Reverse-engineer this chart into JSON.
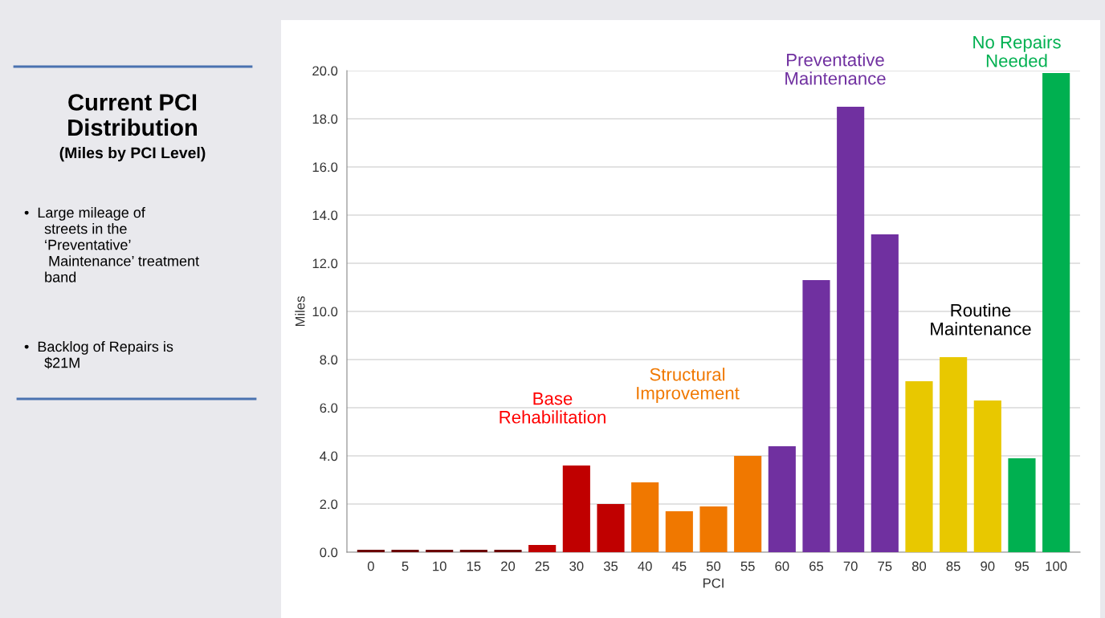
{
  "chart_data": {
    "type": "bar",
    "title": "Current PCI\nDistribution",
    "subtitle": "(Miles by PCI Level)",
    "xlabel": "PCI",
    "ylabel": "Miles",
    "categories": [
      "0",
      "5",
      "10",
      "15",
      "20",
      "25",
      "30",
      "35",
      "40",
      "45",
      "50",
      "55",
      "60",
      "65",
      "70",
      "75",
      "80",
      "85",
      "90",
      "95",
      "100"
    ],
    "values": [
      0.1,
      0.1,
      0.1,
      0.1,
      0.1,
      0.3,
      3.6,
      2.0,
      2.9,
      1.7,
      1.9,
      4.0,
      4.4,
      11.3,
      18.5,
      13.2,
      7.1,
      8.1,
      6.3,
      3.9,
      19.9
    ],
    "colors": [
      "#6b0000",
      "#6b0000",
      "#6b0000",
      "#6b0000",
      "#6b0000",
      "#c00000",
      "#c00000",
      "#c00000",
      "#f07800",
      "#f07800",
      "#f07800",
      "#f07800",
      "#7030a0",
      "#7030a0",
      "#7030a0",
      "#7030a0",
      "#e8c800",
      "#e8c800",
      "#e8c800",
      "#00b050",
      "#00b050"
    ],
    "ylim": [
      0,
      20
    ],
    "yticks": [
      {
        "value": 0,
        "label": "0.0"
      },
      {
        "value": 2,
        "label": "2.0"
      },
      {
        "value": 4,
        "label": "4.0"
      },
      {
        "value": 6,
        "label": "6.0"
      },
      {
        "value": 8,
        "label": "8.0"
      },
      {
        "value": 10,
        "label": "10.0"
      },
      {
        "value": 12,
        "label": "12.0"
      },
      {
        "value": 14,
        "label": "14.0"
      },
      {
        "value": 16,
        "label": "16.0"
      },
      {
        "value": 18,
        "label": "18.0"
      },
      {
        "value": 20,
        "label": "20.0"
      }
    ],
    "grid": "y",
    "annotations": [
      "Base\nRehabilitation",
      "Structural\nImprovement",
      "Preventative\nMaintenance",
      "Routine\nMaintenance",
      "No Repairs\nNeeded",
      "•  Large mileage of\n     streets in the\n     ‘Preventative’\n      Maintenance’ treatment\n     band",
      "•  Backlog of Repairs is\n     $21M"
    ]
  }
}
